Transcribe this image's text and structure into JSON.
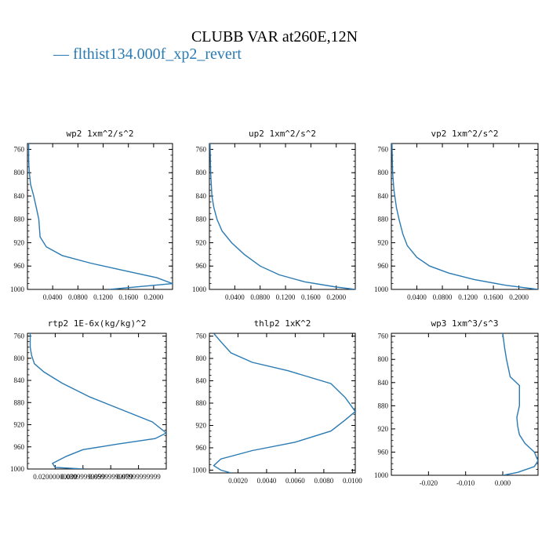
{
  "title": "CLUBB VAR at260E,12N",
  "legend": {
    "marker": "—",
    "label": "flthist134.000f_xp2_revert",
    "color": "#2a7ab3"
  },
  "chart_data": [
    {
      "type": "line",
      "title": "wp2  1xm^2/s^2",
      "xlim": [
        0,
        0.23
      ],
      "ylim": [
        1000,
        750
      ],
      "y_inverted": true,
      "xticks": [
        0.04,
        0.08,
        0.12,
        0.16,
        0.2
      ],
      "xtick_labels": [
        "0.0400",
        "0.0800",
        "0.1200",
        "0.1600",
        "0.2000"
      ],
      "yticks": [
        760,
        800,
        840,
        880,
        920,
        960,
        1000
      ],
      "ytick_labels": [
        "760",
        "800",
        "840",
        "880",
        "920",
        "960",
        "1000"
      ],
      "series": [
        {
          "x": [
            0.002,
            0.002,
            0.003,
            0.005,
            0.01,
            0.014,
            0.018,
            0.02,
            0.03,
            0.055,
            0.1,
            0.15,
            0.205,
            0.23,
            0.2,
            0.13
          ],
          "y": [
            750,
            780,
            800,
            820,
            840,
            860,
            880,
            910,
            927,
            942,
            955,
            967,
            980,
            990,
            993,
            1000
          ]
        }
      ]
    },
    {
      "type": "line",
      "title": "up2  1xm^2/s^2",
      "xlim": [
        0,
        0.23
      ],
      "ylim": [
        1000,
        750
      ],
      "y_inverted": true,
      "xticks": [
        0.04,
        0.08,
        0.12,
        0.16,
        0.2
      ],
      "xtick_labels": [
        "0.0400",
        "0.0800",
        "0.1200",
        "0.1600",
        "0.2000"
      ],
      "yticks": [
        760,
        800,
        840,
        880,
        920,
        960,
        1000
      ],
      "ytick_labels": [
        "760",
        "800",
        "840",
        "880",
        "920",
        "960",
        "1000"
      ],
      "series": [
        {
          "x": [
            0.001,
            0.002,
            0.004,
            0.007,
            0.012,
            0.02,
            0.035,
            0.055,
            0.08,
            0.11,
            0.15,
            0.2,
            0.23
          ],
          "y": [
            750,
            800,
            840,
            860,
            880,
            900,
            920,
            940,
            960,
            975,
            987,
            996,
            1000
          ]
        }
      ]
    },
    {
      "type": "line",
      "title": "vp2  1xm^2/s^2",
      "xlim": [
        0,
        0.23
      ],
      "ylim": [
        1000,
        750
      ],
      "y_inverted": true,
      "xticks": [
        0.04,
        0.08,
        0.12,
        0.16,
        0.2
      ],
      "xtick_labels": [
        "0.0400",
        "0.0800",
        "0.1200",
        "0.1600",
        "0.2000"
      ],
      "yticks": [
        760,
        800,
        840,
        880,
        920,
        960,
        1000
      ],
      "ytick_labels": [
        "760",
        "800",
        "840",
        "880",
        "920",
        "960",
        "1000"
      ],
      "series": [
        {
          "x": [
            0.001,
            0.002,
            0.004,
            0.008,
            0.012,
            0.018,
            0.025,
            0.04,
            0.06,
            0.09,
            0.13,
            0.18,
            0.23
          ],
          "y": [
            750,
            800,
            830,
            860,
            880,
            905,
            925,
            945,
            960,
            972,
            983,
            993,
            1000
          ]
        }
      ]
    },
    {
      "type": "line",
      "title": "rtp2  1E-6x(kg/kg)^2",
      "xlim": [
        0,
        0.1
      ],
      "ylim": [
        1000,
        755
      ],
      "y_inverted": true,
      "xticks": [
        0.02,
        0.04,
        0.06,
        0.08
      ],
      "xtick_labels": [
        "0.02000000000",
        "0.03999999999",
        "0.05999999999",
        "0.07999999999"
      ],
      "yticks": [
        760,
        800,
        840,
        880,
        920,
        960,
        1000
      ],
      "ytick_labels": [
        "760",
        "800",
        "840",
        "880",
        "920",
        "960",
        "1000"
      ],
      "series": [
        {
          "x": [
            0.002,
            0.002,
            0.003,
            0.005,
            0.012,
            0.025,
            0.045,
            0.07,
            0.09,
            0.1,
            0.092,
            0.065,
            0.04,
            0.028,
            0.018,
            0.02,
            0.04
          ],
          "y": [
            755,
            780,
            795,
            810,
            825,
            845,
            870,
            895,
            915,
            935,
            945,
            955,
            965,
            977,
            990,
            997,
            1000
          ]
        }
      ]
    },
    {
      "type": "line",
      "title": "thlp2  1xK^2",
      "xlim": [
        0,
        0.0102
      ],
      "ylim": [
        1005,
        755
      ],
      "y_inverted": true,
      "xticks": [
        0.002,
        0.004,
        0.006,
        0.008,
        0.01
      ],
      "xtick_labels": [
        "0.0020",
        "0.0040",
        "0.0060",
        "0.0080",
        "0.0100"
      ],
      "yticks": [
        760,
        800,
        840,
        880,
        920,
        960,
        1000
      ],
      "ytick_labels": [
        "760",
        "800",
        "840",
        "880",
        "920",
        "960",
        "1000"
      ],
      "series": [
        {
          "x": [
            0.0003,
            0.0008,
            0.0015,
            0.003,
            0.0055,
            0.0085,
            0.0095,
            0.0102,
            0.0095,
            0.0085,
            0.006,
            0.003,
            0.0008,
            0.0003,
            0.0008,
            0.0015
          ],
          "y": [
            755,
            770,
            790,
            807,
            822,
            845,
            870,
            895,
            910,
            930,
            950,
            965,
            980,
            992,
            1000,
            1005
          ]
        }
      ]
    },
    {
      "type": "line",
      "title": "wp3  1xm^3/s^3",
      "xlim": [
        -0.03,
        0.0095
      ],
      "ylim": [
        1000,
        755
      ],
      "y_inverted": true,
      "xticks": [
        -0.02,
        -0.01,
        0.0
      ],
      "xtick_labels": [
        "-0.020",
        "-0.010",
        "0.000"
      ],
      "yticks": [
        760,
        800,
        840,
        880,
        920,
        960,
        1000
      ],
      "ytick_labels": [
        "760",
        "800",
        "840",
        "880",
        "920",
        "960",
        "1000"
      ],
      "series": [
        {
          "x": [
            0.0,
            0.0005,
            0.001,
            0.002,
            0.0045,
            0.0045,
            0.0038,
            0.004,
            0.0045,
            0.006,
            0.0085,
            0.0095,
            0.0085,
            0.004,
            0.0
          ],
          "y": [
            755,
            780,
            800,
            830,
            845,
            880,
            900,
            915,
            930,
            945,
            960,
            975,
            985,
            995,
            1000
          ]
        }
      ]
    }
  ]
}
